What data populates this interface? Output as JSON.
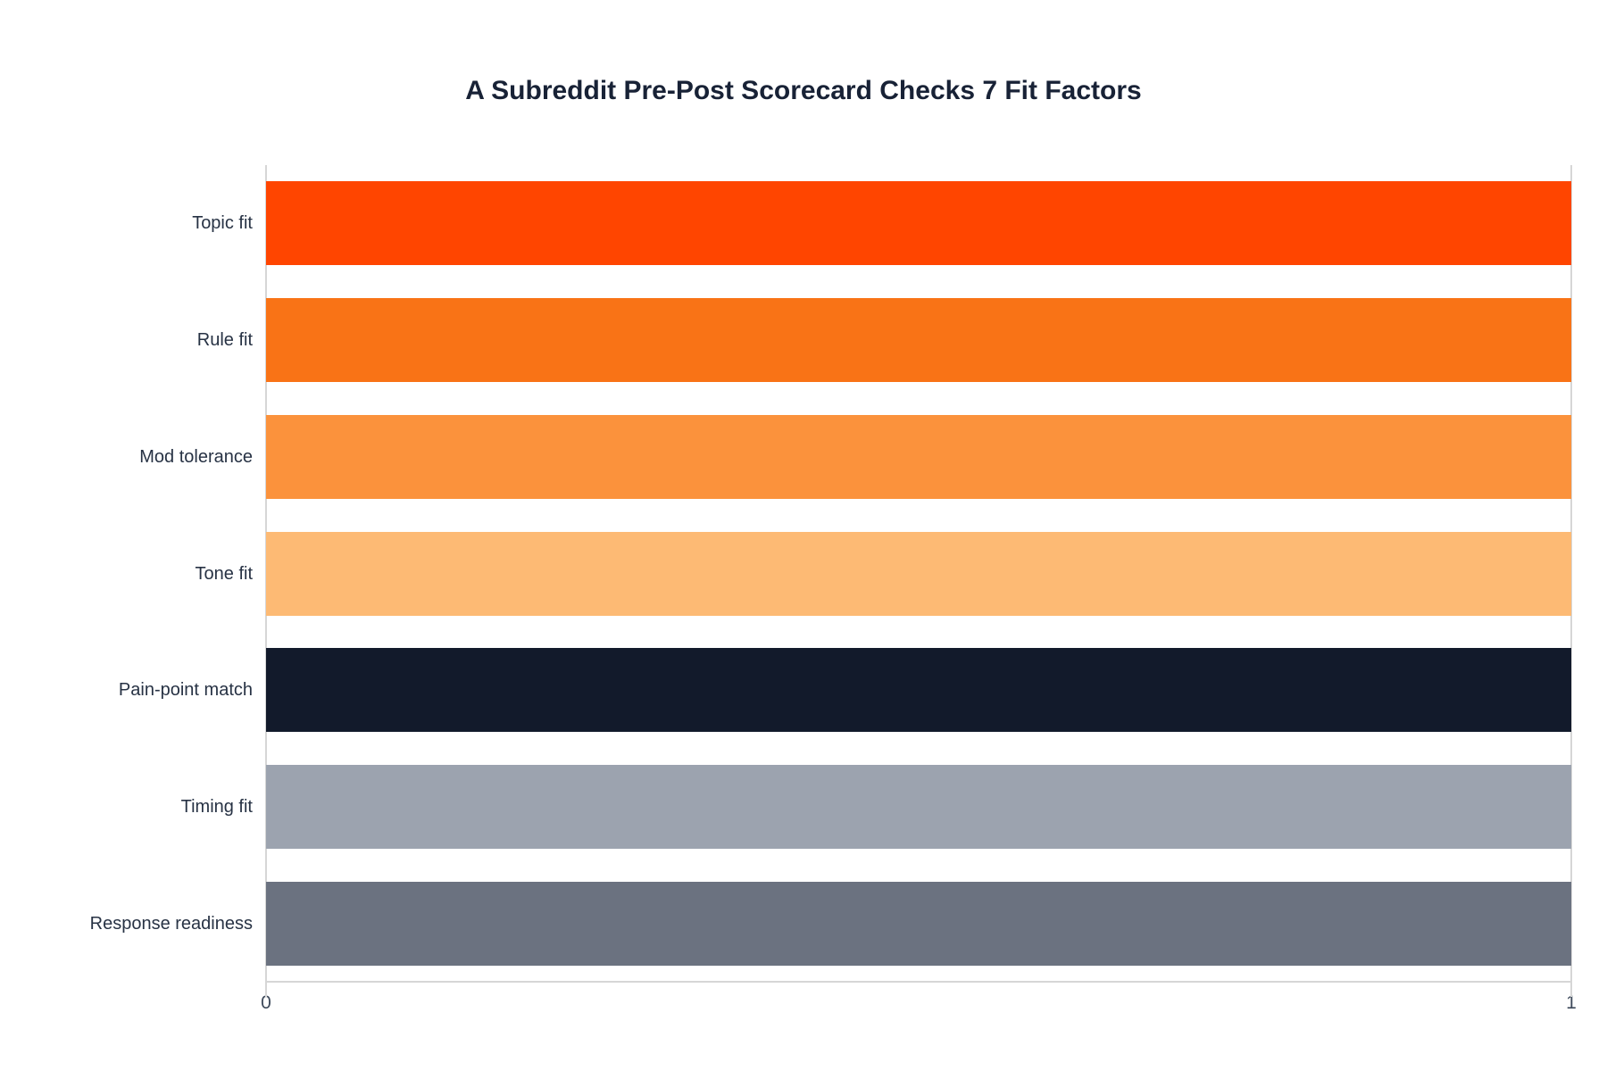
{
  "chart_data": {
    "type": "bar",
    "orientation": "horizontal",
    "title": "A Subreddit Pre-Post Scorecard Checks 7 Fit Factors",
    "categories": [
      "Topic fit",
      "Rule fit",
      "Mod tolerance",
      "Tone fit",
      "Pain-point match",
      "Timing fit",
      "Response readiness"
    ],
    "values": [
      1,
      1,
      1,
      1,
      1,
      1,
      1
    ],
    "bar_colors": [
      "#FF4500",
      "#F97316",
      "#FB923C",
      "#FDBA74",
      "#121A2B",
      "#9CA3AF",
      "#6B7280"
    ],
    "xlabel": "",
    "ylabel": "",
    "xlim": [
      0,
      1
    ],
    "xticks": [
      "0",
      "1"
    ],
    "grid": "vertical lines at x=0 and x=1 only",
    "legend": "none",
    "colors": {
      "title": "#182236",
      "category_label": "#273244",
      "tick_label": "#3E4A5B",
      "axis_line": "#D6D6D6",
      "background": "#FFFFFF"
    }
  }
}
